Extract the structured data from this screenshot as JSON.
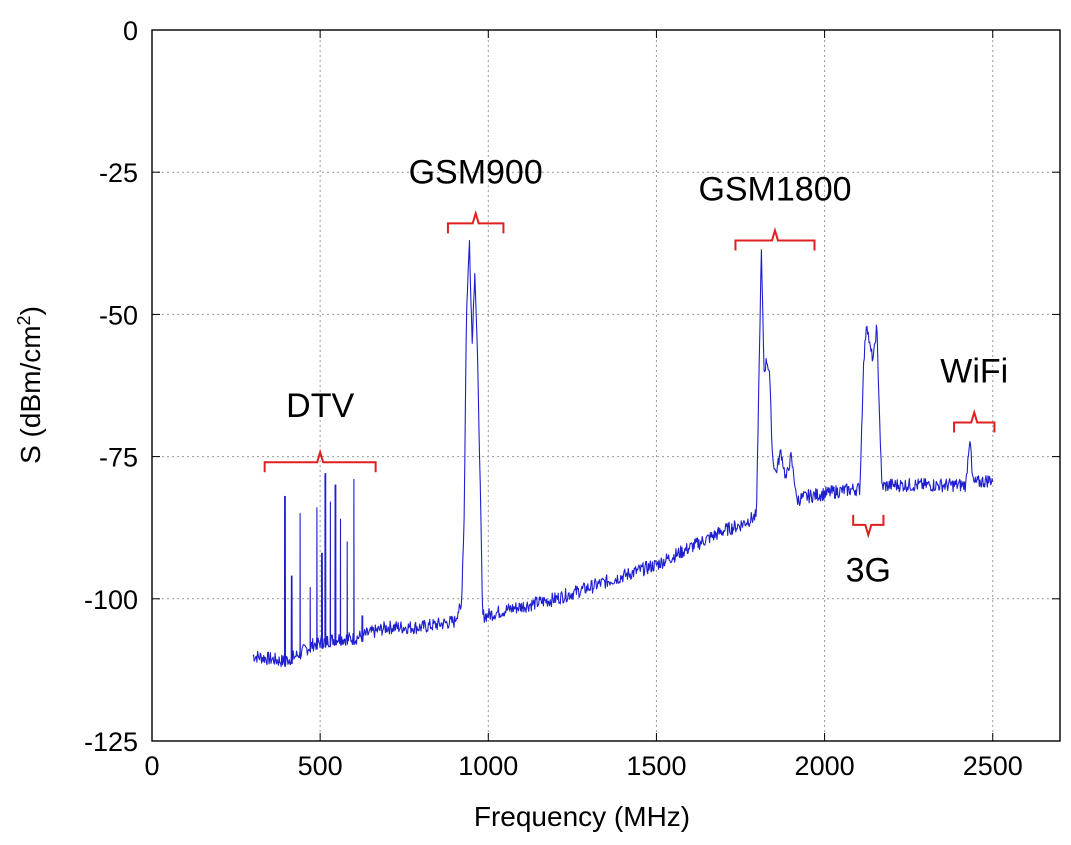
{
  "chart_data": {
    "type": "line",
    "title": "",
    "xlabel": "Frequency (MHz)",
    "ylabel_main": "S (dBm/cm",
    "ylabel_sup": "2",
    "ylabel_close": ")",
    "xlim": [
      0,
      2700
    ],
    "ylim": [
      -125,
      0
    ],
    "xticks": [
      0,
      500,
      1000,
      1500,
      2000,
      2500
    ],
    "yticks": [
      0,
      -25,
      -50,
      -75,
      -100,
      -125
    ],
    "grid": true,
    "series_color": "#1f1fd0",
    "annotation_color": "#e02020",
    "series": [
      {
        "baseline": [
          [
            300,
            -110
          ],
          [
            390,
            -111
          ],
          [
            430,
            -110
          ],
          [
            480,
            -108
          ],
          [
            550,
            -107
          ],
          [
            600,
            -107
          ],
          [
            650,
            -106
          ],
          [
            700,
            -105
          ],
          [
            800,
            -105
          ],
          [
            900,
            -104
          ],
          [
            910,
            -102
          ],
          [
            990,
            -103
          ],
          [
            1050,
            -102
          ],
          [
            1200,
            -100
          ],
          [
            1300,
            -98
          ],
          [
            1400,
            -96
          ],
          [
            1500,
            -94
          ],
          [
            1600,
            -91
          ],
          [
            1700,
            -88
          ],
          [
            1750,
            -87
          ],
          [
            1780,
            -86
          ],
          [
            1810,
            -85
          ],
          [
            1840,
            -84
          ],
          [
            1950,
            -82
          ],
          [
            2050,
            -81
          ],
          [
            2200,
            -80
          ],
          [
            2300,
            -80
          ],
          [
            2420,
            -80
          ],
          [
            2500,
            -79
          ]
        ],
        "peaks": [
          {
            "x": 395,
            "y": -82
          },
          {
            "x": 415,
            "y": -96
          },
          {
            "x": 440,
            "y": -85
          },
          {
            "x": 470,
            "y": -98
          },
          {
            "x": 490,
            "y": -84
          },
          {
            "x": 505,
            "y": -92
          },
          {
            "x": 515,
            "y": -78
          },
          {
            "x": 530,
            "y": -83
          },
          {
            "x": 545,
            "y": -80
          },
          {
            "x": 560,
            "y": -86
          },
          {
            "x": 580,
            "y": -90
          },
          {
            "x": 600,
            "y": -79
          },
          {
            "x": 625,
            "y": -103
          }
        ],
        "bands": [
          {
            "x0": 920,
            "x1": 980,
            "points": [
              [
                920,
                -101
              ],
              [
                928,
                -86
              ],
              [
                935,
                -50
              ],
              [
                944,
                -37
              ],
              [
                952,
                -55
              ],
              [
                960,
                -42
              ],
              [
                968,
                -58
              ],
              [
                976,
                -80
              ],
              [
                982,
                -100
              ]
            ]
          },
          {
            "x0": 1800,
            "x1": 1920,
            "points": [
              [
                1798,
                -84
              ],
              [
                1805,
                -60
              ],
              [
                1812,
                -39
              ],
              [
                1820,
                -60
              ],
              [
                1828,
                -58
              ],
              [
                1836,
                -60
              ],
              [
                1845,
                -75
              ],
              [
                1855,
                -78
              ],
              [
                1870,
                -74
              ],
              [
                1885,
                -79
              ],
              [
                1900,
                -75
              ],
              [
                1915,
                -81
              ]
            ]
          },
          {
            "x0": 2110,
            "x1": 2170,
            "points": [
              [
                2105,
                -81
              ],
              [
                2115,
                -60
              ],
              [
                2125,
                -51
              ],
              [
                2135,
                -56
              ],
              [
                2145,
                -58
              ],
              [
                2155,
                -52
              ],
              [
                2162,
                -65
              ],
              [
                2170,
                -80
              ]
            ]
          },
          {
            "x0": 2420,
            "x1": 2445,
            "points": [
              [
                2420,
                -80
              ],
              [
                2428,
                -74
              ],
              [
                2433,
                -71
              ],
              [
                2438,
                -78
              ],
              [
                2445,
                -80
              ]
            ]
          }
        ]
      }
    ],
    "annotations": [
      {
        "label": "DTV",
        "x0": 335,
        "x1": 665,
        "y_bracket": -76,
        "y_label": -68
      },
      {
        "label": "GSM900",
        "x0": 880,
        "x1": 1045,
        "y_bracket": -34,
        "y_label": -27
      },
      {
        "label": "GSM1800",
        "x0": 1735,
        "x1": 1970,
        "y_bracket": -37,
        "y_label": -30
      },
      {
        "label": "WiFi",
        "x0": 2385,
        "x1": 2505,
        "y_bracket": -69,
        "y_label": -62
      },
      {
        "label": "3G",
        "x0": 2085,
        "x1": 2175,
        "y_bracket": -87,
        "y_label": -97,
        "below": true
      }
    ]
  }
}
